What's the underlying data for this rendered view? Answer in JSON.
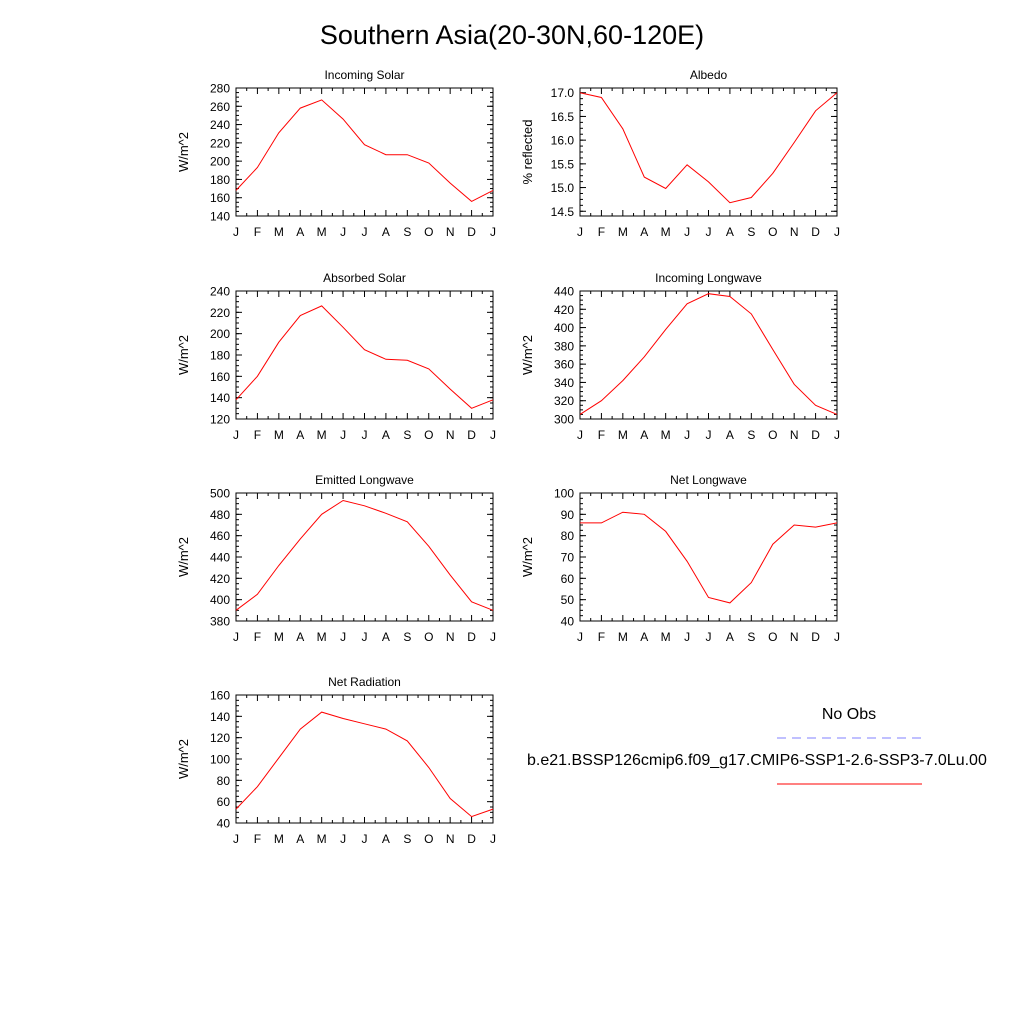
{
  "page": {
    "title": "Southern Asia(20-30N,60-120E)"
  },
  "legend": {
    "obs_label": "No Obs",
    "obs_color": "#8080ff",
    "model_label": "b.e21.BSSP126cmip6.f09_g17.CMIP6-SSP1-2.6-SSP3-7.0Lu.00",
    "model_color": "#ff0000"
  },
  "chart_data": [
    {
      "type": "line",
      "title": "Incoming Solar",
      "ylabel": "W/m^2",
      "x": [
        "J",
        "F",
        "M",
        "A",
        "M",
        "J",
        "J",
        "A",
        "S",
        "O",
        "N",
        "D",
        "J"
      ],
      "ylim": [
        140,
        280
      ],
      "yticks": [
        "140",
        "160",
        "180",
        "200",
        "220",
        "240",
        "260",
        "280"
      ],
      "series": [
        {
          "color": "#ff0000",
          "values": [
            168,
            193,
            231,
            258,
            267,
            246,
            218,
            207,
            207,
            198,
            176,
            156,
            168
          ]
        }
      ]
    },
    {
      "type": "line",
      "title": "Albedo",
      "ylabel": "% reflected",
      "x": [
        "J",
        "F",
        "M",
        "A",
        "M",
        "J",
        "J",
        "A",
        "S",
        "O",
        "N",
        "D",
        "J"
      ],
      "ylim": [
        14.4,
        17.1
      ],
      "yticks": [
        "14.5",
        "15.0",
        "15.5",
        "16.0",
        "16.5",
        "17.0"
      ],
      "series": [
        {
          "color": "#ff0000",
          "values": [
            17.0,
            16.9,
            16.24,
            15.22,
            14.98,
            15.48,
            15.12,
            14.68,
            14.79,
            15.3,
            15.95,
            16.62,
            17.0
          ]
        }
      ]
    },
    {
      "type": "line",
      "title": "Absorbed Solar",
      "ylabel": "W/m^2",
      "x": [
        "J",
        "F",
        "M",
        "A",
        "M",
        "J",
        "J",
        "A",
        "S",
        "O",
        "N",
        "D",
        "J"
      ],
      "ylim": [
        120,
        240
      ],
      "yticks": [
        "120",
        "140",
        "160",
        "180",
        "200",
        "220",
        "240"
      ],
      "series": [
        {
          "color": "#ff0000",
          "values": [
            138,
            160,
            192,
            217,
            226,
            206,
            185,
            176,
            175,
            167,
            148,
            130,
            138
          ]
        }
      ]
    },
    {
      "type": "line",
      "title": "Incoming Longwave",
      "ylabel": "W/m^2",
      "x": [
        "J",
        "F",
        "M",
        "A",
        "M",
        "J",
        "J",
        "A",
        "S",
        "O",
        "N",
        "D",
        "J"
      ],
      "ylim": [
        300,
        440
      ],
      "yticks": [
        "300",
        "320",
        "340",
        "360",
        "380",
        "400",
        "420",
        "440"
      ],
      "series": [
        {
          "color": "#ff0000",
          "values": [
            305,
            320,
            342,
            368,
            398,
            426,
            437,
            434,
            415,
            376,
            338,
            315,
            305
          ]
        }
      ]
    },
    {
      "type": "line",
      "title": "Emitted Longwave",
      "ylabel": "W/m^2",
      "x": [
        "J",
        "F",
        "M",
        "A",
        "M",
        "J",
        "J",
        "A",
        "S",
        "O",
        "N",
        "D",
        "J"
      ],
      "ylim": [
        380,
        500
      ],
      "yticks": [
        "380",
        "400",
        "420",
        "440",
        "460",
        "480",
        "500"
      ],
      "series": [
        {
          "color": "#ff0000",
          "values": [
            390,
            405,
            432,
            457,
            480,
            493,
            488,
            481,
            473,
            450,
            423,
            398,
            390
          ]
        }
      ]
    },
    {
      "type": "line",
      "title": "Net Longwave",
      "ylabel": "W/m^2",
      "x": [
        "J",
        "F",
        "M",
        "A",
        "M",
        "J",
        "J",
        "A",
        "S",
        "O",
        "N",
        "D",
        "J"
      ],
      "ylim": [
        40,
        100
      ],
      "yticks": [
        "40",
        "50",
        "60",
        "70",
        "80",
        "90",
        "100"
      ],
      "series": [
        {
          "color": "#ff0000",
          "values": [
            86,
            86,
            91,
            90,
            82,
            68,
            51,
            48.5,
            58,
            76,
            85,
            84,
            86
          ]
        }
      ]
    },
    {
      "type": "line",
      "title": "Net Radiation",
      "ylabel": "W/m^2",
      "x": [
        "J",
        "F",
        "M",
        "A",
        "M",
        "J",
        "J",
        "A",
        "S",
        "O",
        "N",
        "D",
        "J"
      ],
      "ylim": [
        40,
        160
      ],
      "yticks": [
        "40",
        "60",
        "80",
        "100",
        "120",
        "140",
        "160"
      ],
      "series": [
        {
          "color": "#ff0000",
          "values": [
            53,
            74,
            101,
            128,
            144,
            138,
            133,
            128,
            117,
            92,
            63,
            46,
            53
          ]
        }
      ]
    }
  ]
}
